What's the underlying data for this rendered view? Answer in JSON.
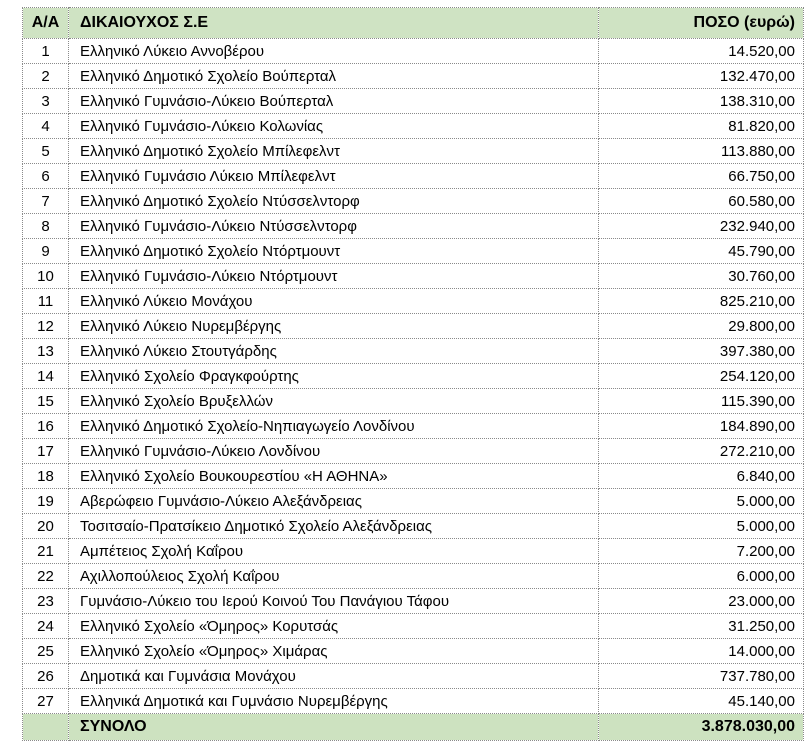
{
  "colors": {
    "header_bg": "#cfe3c3",
    "total_bg": "#cde2c0",
    "border": "#8a8a8a",
    "text": "#000000",
    "page_bg": "#ffffff"
  },
  "table": {
    "columns": {
      "index_label": "Α/Α",
      "name_label": "ΔΙΚΑΙΟΥΧΟΣ Σ.Ε",
      "amount_label": "ΠΟΣΟ (ευρώ)"
    },
    "rows": [
      {
        "index": "1",
        "name": "Ελληνικό Λύκειο Αννοβέρου",
        "amount": "14.520,00"
      },
      {
        "index": "2",
        "name": "Ελληνικό Δημοτικό Σχολείο Βούπερταλ",
        "amount": "132.470,00"
      },
      {
        "index": "3",
        "name": "Ελληνικό Γυμνάσιο-Λύκειο Βούπερταλ",
        "amount": "138.310,00"
      },
      {
        "index": "4",
        "name": "Ελληνικό Γυμνάσιο-Λύκειο Κολωνίας",
        "amount": "81.820,00"
      },
      {
        "index": "5",
        "name": "Ελληνικό Δημοτικό Σχολείο Μπίλεφελντ",
        "amount": "113.880,00"
      },
      {
        "index": "6",
        "name": "Ελληνικό Γυμνάσιο Λύκειο Μπίλεφελντ",
        "amount": "66.750,00"
      },
      {
        "index": "7",
        "name": "Ελληνικό Δημοτικό Σχολείο Ντύσσελντορφ",
        "amount": "60.580,00"
      },
      {
        "index": "8",
        "name": "Ελληνικό Γυμνάσιο-Λύκειο Ντύσσελντορφ",
        "amount": "232.940,00"
      },
      {
        "index": "9",
        "name": "Ελληνικό Δημοτικό Σχολείο Ντόρτμουντ",
        "amount": "45.790,00"
      },
      {
        "index": "10",
        "name": "Ελληνικό Γυμνάσιο-Λύκειο Ντόρτμουντ",
        "amount": "30.760,00"
      },
      {
        "index": "11",
        "name": "Ελληνικό Λύκειο Μονάχου",
        "amount": "825.210,00"
      },
      {
        "index": "12",
        "name": "Ελληνικό Λύκειο Νυρεμβέργης",
        "amount": "29.800,00"
      },
      {
        "index": "13",
        "name": "Ελληνικό Λύκειο Στουτγάρδης",
        "amount": "397.380,00"
      },
      {
        "index": "14",
        "name": "Ελληνικό Σχολείο Φραγκφούρτης",
        "amount": "254.120,00"
      },
      {
        "index": "15",
        "name": "Ελληνικό Σχολείο Βρυξελλών",
        "amount": "115.390,00"
      },
      {
        "index": "16",
        "name": "Ελληνικό Δημοτικό Σχολείο-Νηπιαγωγείο Λονδίνου",
        "amount": "184.890,00"
      },
      {
        "index": "17",
        "name": "Ελληνικό Γυμνάσιο-Λύκειο Λονδίνου",
        "amount": "272.210,00"
      },
      {
        "index": "18",
        "name": "Ελληνικό Σχολείο Βουκουρεστίου «Η ΑΘΗΝΑ»",
        "amount": "6.840,00"
      },
      {
        "index": "19",
        "name": "Αβερώφειο Γυμνάσιο-Λύκειο Αλεξάνδρειας",
        "amount": "5.000,00"
      },
      {
        "index": "20",
        "name": "Τοσιτσαίο-Πρατσίκειο Δημοτικό Σχολείο Αλεξάνδρειας",
        "amount": "5.000,00"
      },
      {
        "index": "21",
        "name": "Αμπέτειος Σχολή Καΐρου",
        "amount": "7.200,00"
      },
      {
        "index": "22",
        "name": "Αχιλλοπούλειος Σχολή Καΐρου",
        "amount": "6.000,00"
      },
      {
        "index": "23",
        "name": "Γυμνάσιο-Λύκειο του Ιερού Κοινού Του Πανάγιου Τάφου",
        "amount": "23.000,00"
      },
      {
        "index": "24",
        "name": "Ελληνικό Σχολείο «Όμηρος» Κορυτσάς",
        "amount": "31.250,00"
      },
      {
        "index": "25",
        "name": "Ελληνικό Σχολείο «Όμηρος» Χιμάρας",
        "amount": "14.000,00"
      },
      {
        "index": "26",
        "name": "Δημοτικά και Γυμνάσια Μονάχου",
        "amount": "737.780,00"
      },
      {
        "index": "27",
        "name": "Ελληνικά  Δημοτικά και Γυμνάσιο  Νυρεμβέργης",
        "amount": "45.140,00"
      }
    ],
    "total": {
      "label": "ΣΥΝΟΛΟ",
      "amount": "3.878.030,00"
    }
  }
}
